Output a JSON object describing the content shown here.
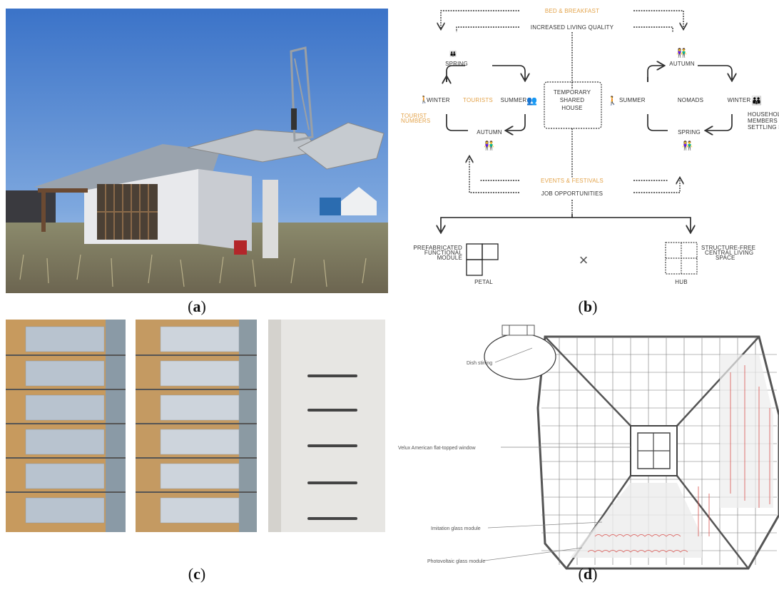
{
  "captions": {
    "a": {
      "open": "(",
      "letter": "a",
      "close": ")"
    },
    "b": {
      "open": "(",
      "letter": "b",
      "close": ")"
    },
    "c": {
      "open": "(",
      "letter": "c",
      "close": ")"
    },
    "d": {
      "open": "(",
      "letter": "d",
      "close": ")"
    }
  },
  "diagram_b": {
    "top_orange": "BED & BREAKFAST",
    "top_dark": "INCREASED LIVING QUALITY",
    "center": [
      "TEMPORARY",
      "SHARED",
      "HOUSE"
    ],
    "left": {
      "spring": "SPRING",
      "winter": "WINTER",
      "tourists": "TOURISTS",
      "summer": "SUMMER",
      "autumn": "AUTUMN",
      "tourist_numbers": [
        "TOURIST",
        "NUMBERS"
      ]
    },
    "right": {
      "autumn": "AUTUMN",
      "summer": "SUMMER",
      "nomads": "NOMADS",
      "winter": "WINTER",
      "spring": "SPRING",
      "household": [
        "HOUSEHOLD",
        "MEMBERS AT",
        "SETTLING SPOT"
      ]
    },
    "bottom_orange": "EVENTS & FESTIVALS",
    "bottom_dark": "JOB OPPORTUNITIES",
    "petal_desc": [
      "PREFABRICATED",
      "FUNCTIONAL",
      "MODULE"
    ],
    "petal": "PETAL",
    "hub_desc": [
      "STRUCTURE-FREE",
      "CENTRAL LIVING",
      "SPACE"
    ],
    "hub": "HUB",
    "cross": "×",
    "colors": {
      "orange": "#e3a34a",
      "dark": "#2f3a2f"
    }
  },
  "diagram_d": {
    "dish": "Dish stirling",
    "velux": "Velux American flat-topped window",
    "imitation": "Imitation glass module",
    "photovoltaic": "Photovoltaic glass module"
  }
}
